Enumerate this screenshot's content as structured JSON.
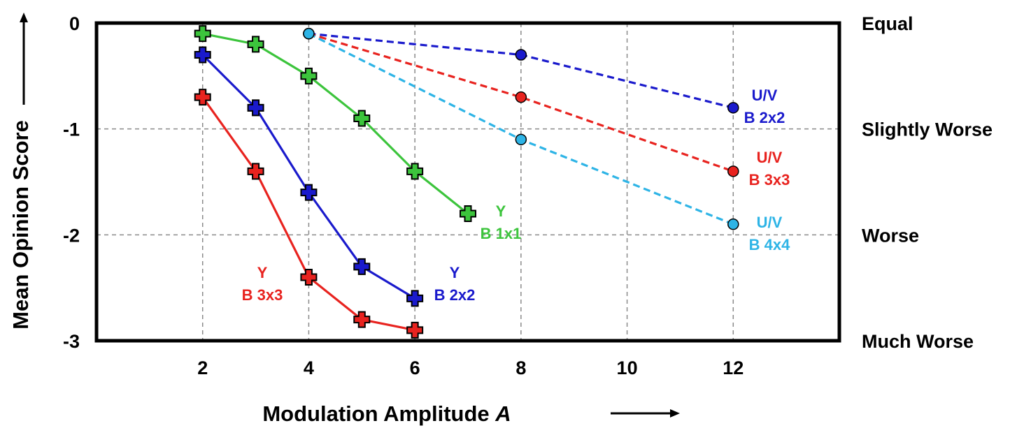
{
  "chart_data": {
    "type": "line",
    "xlabel": "Modulation Amplitude",
    "xlabel_var": "A",
    "ylabel": "Mean Opinion Score",
    "xlim": [
      0,
      14
    ],
    "ylim": [
      -3,
      0
    ],
    "xticks": [
      2,
      4,
      6,
      8,
      10,
      12
    ],
    "yticks": [
      0,
      -1,
      -2,
      -3
    ],
    "ytick_labels": [
      "0",
      "-1",
      "-2",
      "-3"
    ],
    "right_categories": [
      {
        "value": 0,
        "label": "Equal"
      },
      {
        "value": -1,
        "label": "Slightly Worse"
      },
      {
        "value": -2,
        "label": "Worse"
      },
      {
        "value": -3,
        "label": "Much Worse"
      }
    ],
    "grid": true,
    "series": [
      {
        "label_lines": [
          "Y",
          "B 3x3"
        ],
        "color": "#e8231f",
        "line_style": "solid",
        "marker": "cross",
        "x": [
          2,
          3,
          4,
          5,
          6
        ],
        "y": [
          -0.7,
          -1.4,
          -2.4,
          -2.8,
          -2.9
        ]
      },
      {
        "label_lines": [
          "Y",
          "B 2x2"
        ],
        "color": "#1a1acc",
        "line_style": "solid",
        "marker": "cross",
        "x": [
          2,
          3,
          4,
          5,
          6
        ],
        "y": [
          -0.3,
          -0.8,
          -1.6,
          -2.3,
          -2.6
        ]
      },
      {
        "label_lines": [
          "Y",
          "B 1x1"
        ],
        "color": "#3cc43c",
        "line_style": "solid",
        "marker": "cross",
        "x": [
          2,
          3,
          4,
          5,
          6,
          7
        ],
        "y": [
          -0.1,
          -0.2,
          -0.5,
          -0.9,
          -1.4,
          -1.8
        ]
      },
      {
        "label_lines": [
          "U/V",
          "B 2x2"
        ],
        "color": "#1a1acc",
        "line_style": "dashed",
        "marker": "circle",
        "x": [
          4,
          8,
          12
        ],
        "y": [
          -0.1,
          -0.3,
          -0.8
        ]
      },
      {
        "label_lines": [
          "U/V",
          "B 3x3"
        ],
        "color": "#e8231f",
        "line_style": "dashed",
        "marker": "circle",
        "x": [
          4,
          8,
          12
        ],
        "y": [
          -0.1,
          -0.7,
          -1.4
        ]
      },
      {
        "label_lines": [
          "U/V",
          "B 4x4"
        ],
        "color": "#2eb4e6",
        "line_style": "dashed",
        "marker": "circle",
        "x": [
          4,
          8,
          12
        ],
        "y": [
          -0.1,
          -1.1,
          -1.9
        ]
      }
    ]
  }
}
